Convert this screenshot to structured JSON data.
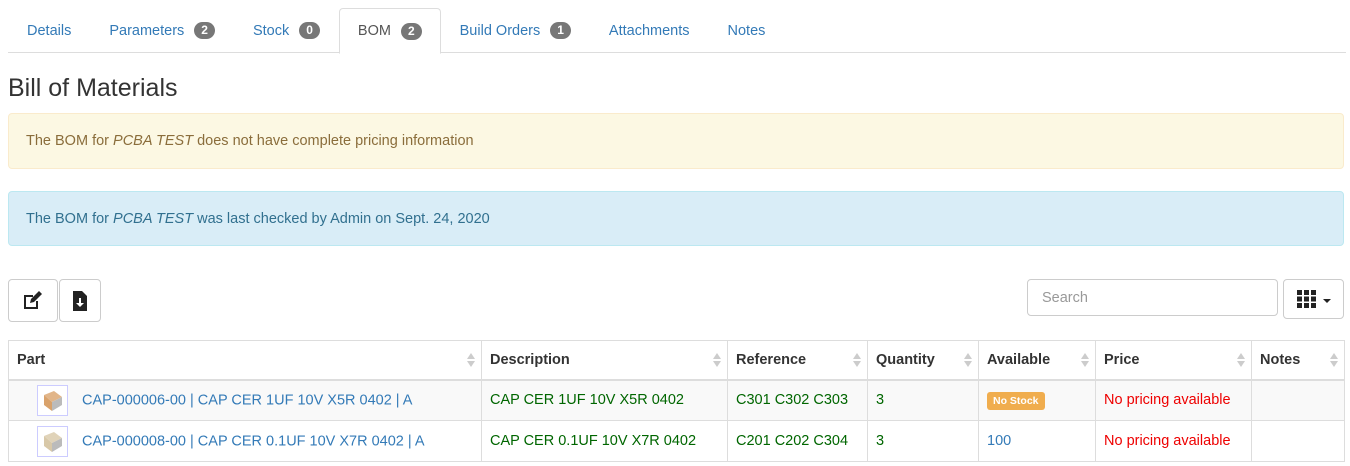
{
  "tabs": [
    {
      "label": "Details"
    },
    {
      "label": "Parameters",
      "badge": "2"
    },
    {
      "label": "Stock",
      "badge": "0"
    },
    {
      "label": "BOM",
      "badge": "2",
      "active": true
    },
    {
      "label": "Build Orders",
      "badge": "1"
    },
    {
      "label": "Attachments"
    },
    {
      "label": "Notes"
    }
  ],
  "page_title": "Bill of Materials",
  "alerts": {
    "pricing": {
      "pre": "The BOM for ",
      "part": "PCBA TEST",
      "post": " does not have complete pricing information"
    },
    "checked": {
      "pre": "The BOM for ",
      "part": "PCBA TEST",
      "post": " was last checked by Admin on Sept. 24, 2020"
    }
  },
  "toolbar": {
    "edit_icon": "edit-icon",
    "export_icon": "file-download-icon",
    "search_placeholder": "Search",
    "columns_icon": "grid-icon"
  },
  "table": {
    "columns": [
      "Part",
      "Description",
      "Reference",
      "Quantity",
      "Available",
      "Price",
      "Notes"
    ],
    "rows": [
      {
        "part": "CAP-000006-00 | CAP CER 1UF 10V X5R 0402 | A",
        "description": "CAP CER 1UF 10V X5R 0402",
        "reference": "C301 C302 C303",
        "quantity": "3",
        "available": "No Stock",
        "available_badge": true,
        "price": "No pricing available",
        "notes": ""
      },
      {
        "part": "CAP-000008-00 | CAP CER 0.1UF 10V X7R 0402 | A",
        "description": "CAP CER 0.1UF 10V X7R 0402",
        "reference": "C201 C202 C304",
        "quantity": "3",
        "available": "100",
        "available_badge": false,
        "price": "No pricing available",
        "notes": ""
      }
    ]
  },
  "colors": {
    "link": "#337ab7",
    "warning_badge": "#f0ad4e",
    "error_text": "#e00000",
    "green_text": "#006600"
  }
}
